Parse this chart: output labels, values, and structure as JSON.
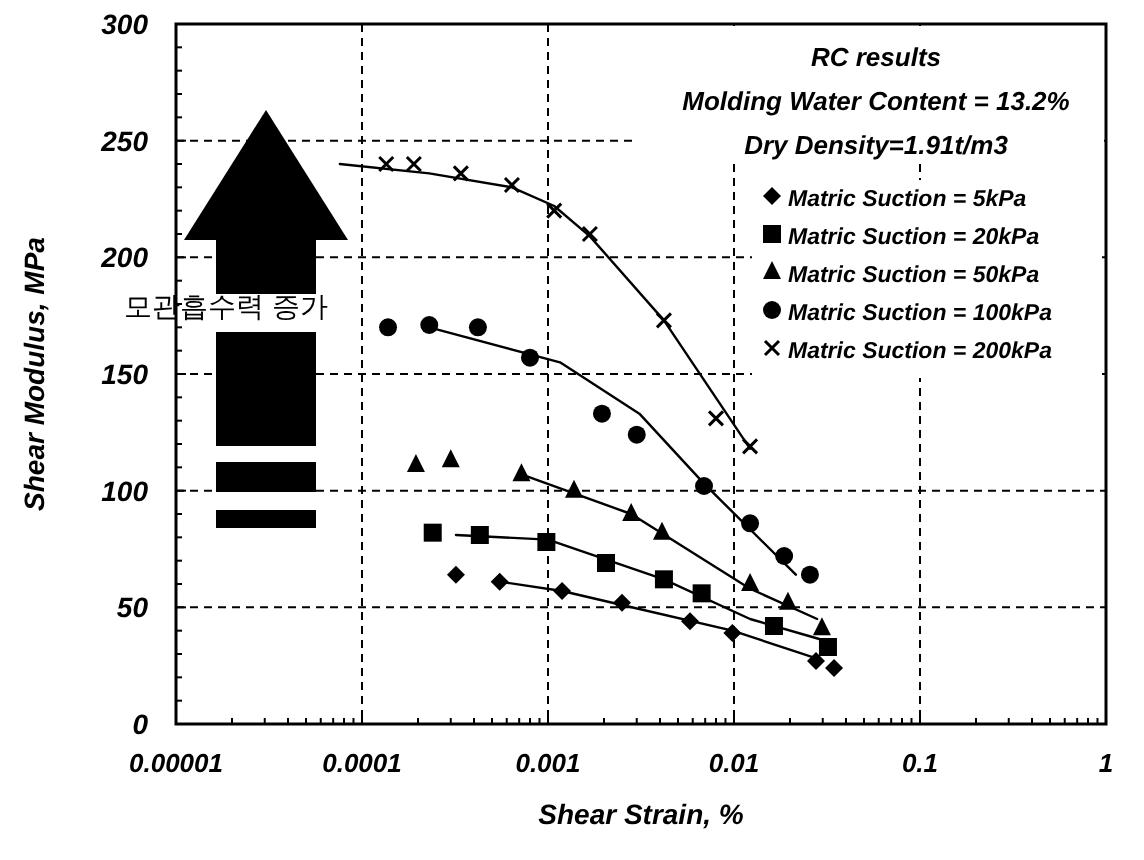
{
  "chart_data": {
    "type": "scatter",
    "xlabel": "Shear Strain, %",
    "ylabel": "Shear Modulus, MPa",
    "annotations": [
      "RC results",
      "Molding Water Content = 13.2%",
      "Dry Density=1.91t/m3",
      "모관흡수력 증가"
    ],
    "log": "x",
    "xlim": [
      1e-05,
      1
    ],
    "xticks": [
      {
        "value": 1e-05,
        "label": "0.00001"
      },
      {
        "value": 0.0001,
        "label": "0.0001"
      },
      {
        "value": 0.001,
        "label": "0.001"
      },
      {
        "value": 0.01,
        "label": "0.01"
      },
      {
        "value": 0.1,
        "label": "0.1"
      },
      {
        "value": 1,
        "label": "1"
      }
    ],
    "ylim": [
      0,
      300
    ],
    "yticks": [
      0,
      50,
      100,
      150,
      200,
      250,
      300
    ],
    "grid": true,
    "legend": "top right",
    "series": [
      {
        "name": "Matric Suction = 5kPa",
        "color": "#000000",
        "marker": "diamond",
        "x": [
          0.00032,
          0.00055,
          0.00119,
          0.0025,
          0.0058,
          0.0098,
          0.0276,
          0.0345
        ],
        "values": [
          64,
          61,
          57,
          52,
          44,
          39,
          27,
          24
        ]
      },
      {
        "name": "Matric Suction = 20kPa",
        "color": "#000000",
        "marker": "square",
        "x": [
          0.00024,
          0.00043,
          0.00098,
          0.00205,
          0.0042,
          0.0067,
          0.0164,
          0.032
        ],
        "values": [
          82,
          81,
          78,
          69,
          62,
          56,
          42,
          33
        ]
      },
      {
        "name": "Matric Suction = 50kPa",
        "color": "#000000",
        "marker": "triangle",
        "x": [
          0.000195,
          0.0003,
          0.00072,
          0.00138,
          0.0028,
          0.0041,
          0.0122,
          0.0195,
          0.0297
        ],
        "values": [
          111,
          113,
          107,
          100,
          90,
          82,
          60,
          52,
          41
        ]
      },
      {
        "name": "Matric Suction = 100kPa",
        "color": "#000000",
        "marker": "circle",
        "x": [
          0.000138,
          0.00023,
          0.00042,
          0.0008,
          0.00195,
          0.003,
          0.0069,
          0.0122,
          0.0186,
          0.0256
        ],
        "values": [
          170,
          171,
          170,
          157,
          133,
          124,
          102,
          86,
          72,
          64
        ]
      },
      {
        "name": "Matric Suction = 200kPa",
        "color": "#000000",
        "marker": "cross",
        "x": [
          0.000135,
          0.00019,
          0.00034,
          0.00064,
          0.00108,
          0.00168,
          0.0042,
          0.008,
          0.0122
        ],
        "values": [
          240,
          240,
          236,
          231,
          220,
          210,
          173,
          131,
          119
        ]
      },
      {
        "type": "line",
        "color": "#000000",
        "marker": "none",
        "line_style": "solid",
        "x": [
          0.00055,
          0.00119,
          0.0025,
          0.0098,
          0.028
        ],
        "values": [
          61,
          57,
          51,
          40,
          28
        ]
      },
      {
        "type": "line",
        "color": "#000000",
        "marker": "none",
        "line_style": "solid",
        "x": [
          0.00032,
          0.001,
          0.0042,
          0.0122,
          0.03
        ],
        "values": [
          81,
          79,
          62,
          45,
          36
        ]
      },
      {
        "type": "line",
        "color": "#000000",
        "marker": "none",
        "line_style": "solid",
        "x": [
          0.00072,
          0.0028,
          0.0122,
          0.028
        ],
        "values": [
          107,
          90,
          58,
          45
        ]
      },
      {
        "type": "line",
        "color": "#000000",
        "marker": "none",
        "line_style": "solid",
        "x": [
          0.00023,
          0.00116,
          0.0031,
          0.0069,
          0.0215
        ],
        "values": [
          170,
          155,
          133,
          103,
          64
        ]
      },
      {
        "type": "line",
        "color": "#000000",
        "marker": "none",
        "line_style": "solid",
        "x": [
          7.6e-05,
          0.00023,
          0.00064,
          0.00108,
          0.00168,
          0.0042,
          0.0122
        ],
        "values": [
          240,
          236,
          230,
          222,
          209,
          173,
          118
        ]
      }
    ]
  }
}
